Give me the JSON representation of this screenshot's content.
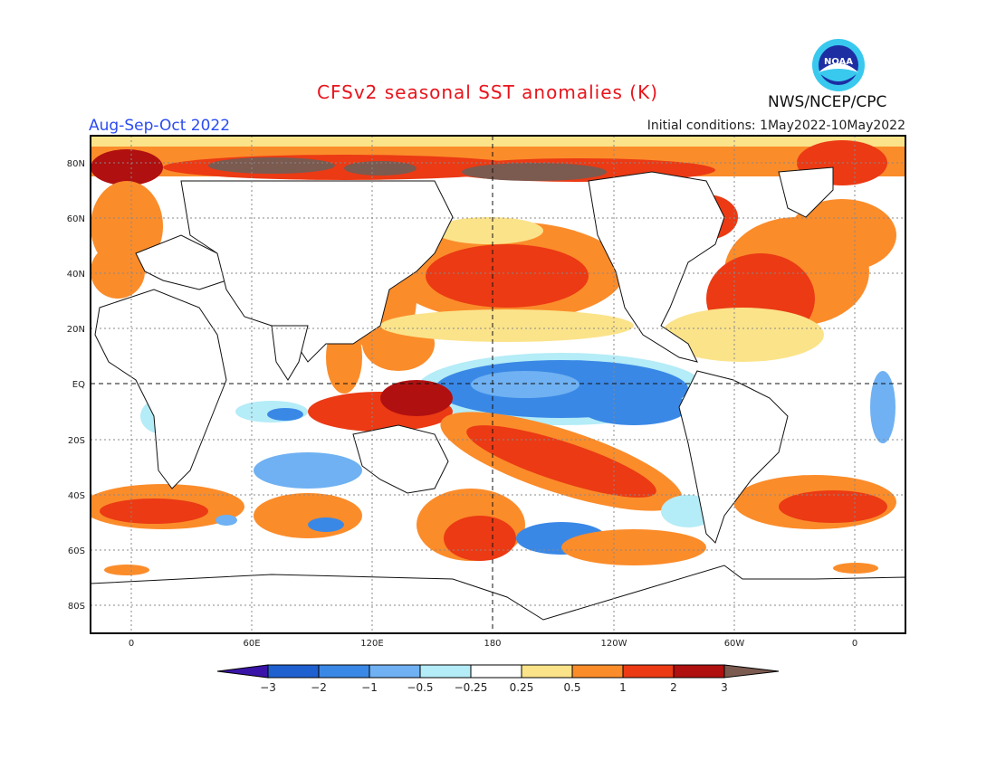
{
  "header": {
    "title": "CFSv2 seasonal SST anomalies (K)",
    "season": "Aug-Sep-Oct 2022",
    "initial_conditions": "Initial conditions: 1May2022-10May2022",
    "organization": "NWS/NCEP/CPC",
    "logo_text": "NOAA"
  },
  "map": {
    "lat_labels": [
      "80N",
      "60N",
      "40N",
      "20N",
      "EQ",
      "20S",
      "40S",
      "60S",
      "80S"
    ],
    "lon_labels": [
      "0",
      "60E",
      "120E",
      "180",
      "120W",
      "60W",
      "0"
    ]
  },
  "colorbar": {
    "labels": [
      "−3",
      "−2",
      "−1",
      "−0.5",
      "−0.25",
      "0.25",
      "0.5",
      "1",
      "2",
      "3"
    ],
    "colors": [
      "#3a14a8",
      "#1e60cf",
      "#3a88e6",
      "#6fb1f2",
      "#b4ecf7",
      "#ffffff",
      "#fbe38a",
      "#fb8c2a",
      "#eb3a14",
      "#b01010",
      "#7b5a50"
    ]
  }
}
